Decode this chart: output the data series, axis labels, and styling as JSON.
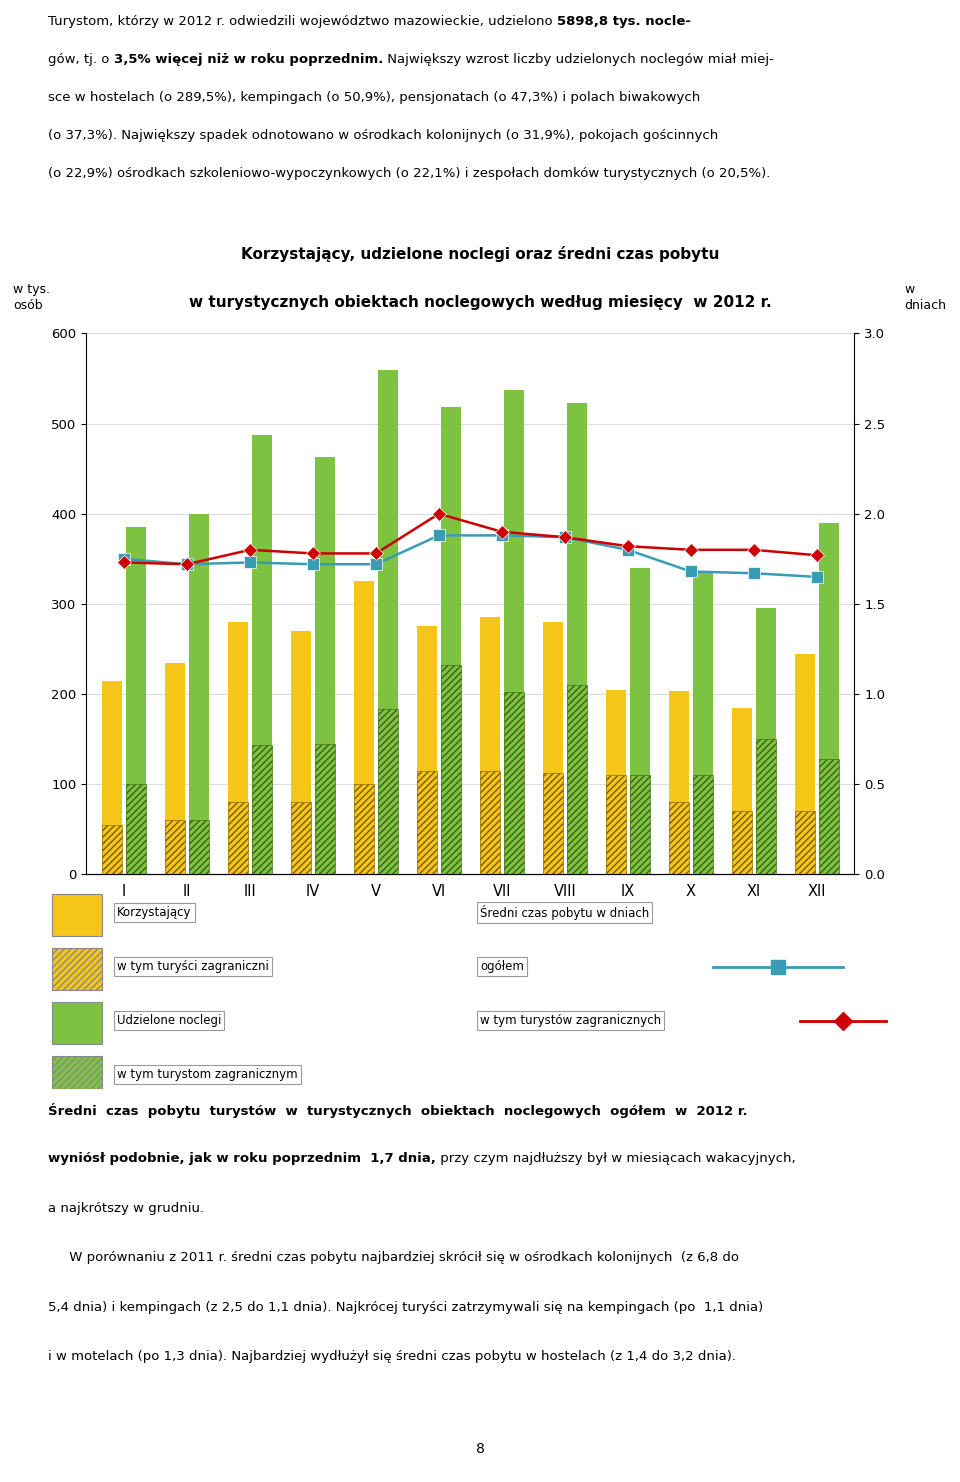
{
  "title_line1": "Korzystający, udzielone noclegi oraz średni czas pobytu",
  "title_line2": "w turystycznych obiektach noclegowych według miesięcy  w 2012 r.",
  "ylabel_left": "w tys.\nosób",
  "ylabel_right": "w\ndniach",
  "months": [
    "I",
    "II",
    "III",
    "IV",
    "V",
    "VI",
    "VII",
    "VIII",
    "IX",
    "X",
    "XI",
    "XII"
  ],
  "korzystajacy": [
    215,
    235,
    280,
    270,
    325,
    275,
    285,
    280,
    205,
    203,
    185,
    245
  ],
  "korzystajacy_zagr": [
    55,
    60,
    80,
    80,
    100,
    115,
    115,
    113,
    110,
    80,
    70,
    70
  ],
  "udzielone_noclegi": [
    385,
    400,
    487,
    463,
    560,
    518,
    537,
    523,
    340,
    337,
    295,
    390
  ],
  "noclegi_zagr": [
    100,
    60,
    143,
    145,
    183,
    232,
    202,
    210,
    110,
    110,
    150,
    128
  ],
  "sredni_ogolem": [
    1.75,
    1.72,
    1.73,
    1.72,
    1.72,
    1.88,
    1.88,
    1.87,
    1.8,
    1.68,
    1.67,
    1.65
  ],
  "sredni_zagr": [
    1.73,
    1.72,
    1.8,
    1.78,
    1.78,
    2.0,
    1.9,
    1.87,
    1.82,
    1.8,
    1.8,
    1.77
  ],
  "ylim_left": [
    0,
    600
  ],
  "ylim_right": [
    0.0,
    3.0
  ],
  "yticks_left": [
    0,
    100,
    200,
    300,
    400,
    500,
    600
  ],
  "yticks_right": [
    0.0,
    0.5,
    1.0,
    1.5,
    2.0,
    2.5,
    3.0
  ],
  "color_korzystajacy": "#F5C518",
  "color_noclegi": "#7DC241",
  "color_line_ogolem": "#3A9BB5",
  "color_line_zagr": "#CC0000",
  "page_number": "8"
}
